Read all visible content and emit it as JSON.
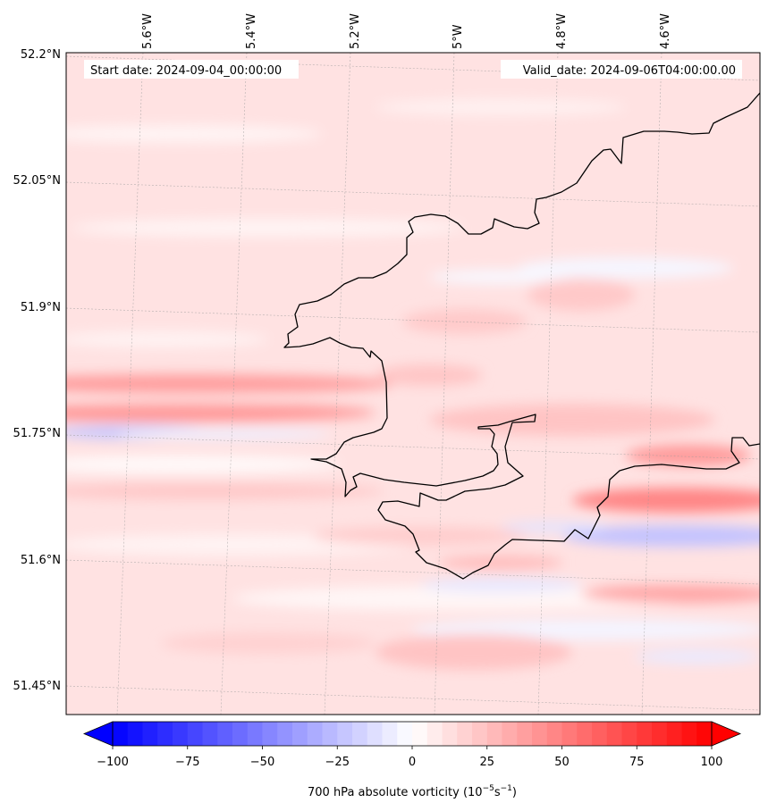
{
  "header": {
    "start_date": "Start date: 2024-09-04_00:00:00",
    "valid_date": "Valid_date: 2024-09-06T04:00:00.00"
  },
  "axes": {
    "lon_labels": [
      "5.6°W",
      "5.4°W",
      "5.2°W",
      "5°W",
      "4.8°W",
      "4.6°W"
    ],
    "lat_labels": [
      "52.2°N",
      "52.05°N",
      "51.9°N",
      "51.75°N",
      "51.6°N",
      "51.45°N"
    ],
    "lon_range": [
      -5.75,
      -4.4
    ],
    "lat_range": [
      51.43,
      52.2
    ],
    "gridlines": true
  },
  "colorbar": {
    "label_main": "700 hPa absolute vorticity (10",
    "label_exp1": "−5",
    "label_mid": "s",
    "label_exp2": "−1",
    "label_end": ")",
    "ticks": [
      "−100",
      "−75",
      "−50",
      "−25",
      "0",
      "25",
      "50",
      "75",
      "100"
    ],
    "tick_values": [
      -100,
      -75,
      -50,
      -25,
      0,
      25,
      50,
      75,
      100
    ],
    "range": [
      -100,
      100
    ],
    "colormap": "bwr",
    "extend": "both",
    "low_color": "#0000ff",
    "mid_color": "#ffffff",
    "high_color": "#ff0000"
  },
  "coastline": {
    "color": "#000000",
    "features": [
      "Pembrokeshire coast",
      "Milford Haven",
      "Carmarthen Bay / Gower coast"
    ]
  }
}
